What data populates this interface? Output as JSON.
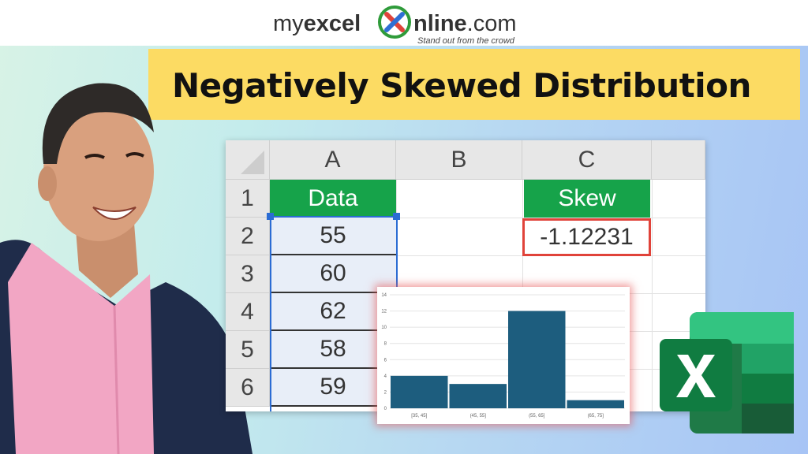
{
  "logo": {
    "part1_light": "my",
    "part1_bold": "excel",
    "part2_bold": "nline",
    "part2_light": ".com",
    "tagline": "Stand out from the crowd"
  },
  "title": "Negatively Skewed Distribution",
  "sheet": {
    "columns": [
      "A",
      "B",
      "C"
    ],
    "rows": [
      "1",
      "2",
      "3",
      "4",
      "5",
      "6"
    ],
    "data_header": "Data",
    "data_values": [
      "55",
      "60",
      "62",
      "58",
      "59"
    ],
    "skew_header": "Skew",
    "skew_value": "-1.12231"
  },
  "chart_data": {
    "type": "bar",
    "categories": [
      "[35, 45]",
      "(45, 55]",
      "(55, 65]",
      "(65, 75]"
    ],
    "values": [
      4,
      3,
      12,
      1
    ],
    "ylim": [
      0,
      14
    ],
    "yticks": [
      0,
      2,
      4,
      6,
      8,
      10,
      12,
      14
    ],
    "grid": true,
    "bar_color": "#1d5d7e"
  },
  "colors": {
    "banner": "#fcdb63",
    "header_green": "#16a34a",
    "skew_border": "#e0433a",
    "selection": "#2b6cd4"
  },
  "icons": [
    "excel-logo-icon",
    "myexcelonline-x-icon"
  ]
}
